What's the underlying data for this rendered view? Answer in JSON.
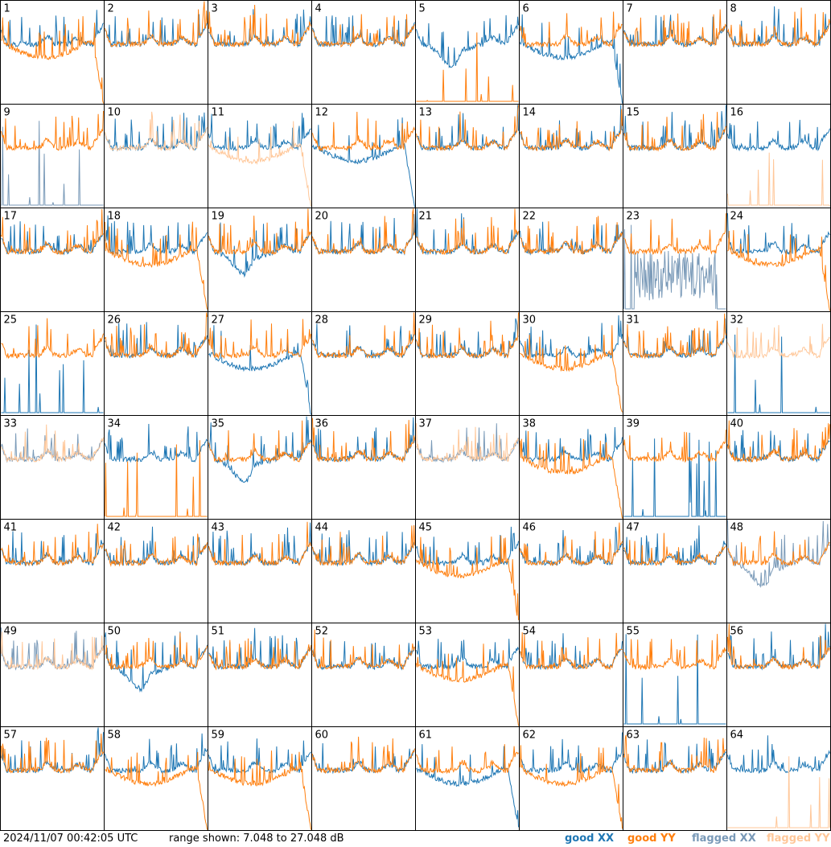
{
  "footer": {
    "timestamp": "2024/11/07 00:42:05 UTC",
    "range_text": "range shown: 7.048 to 27.048 dB"
  },
  "legend": [
    {
      "key": "good_xx",
      "label": "good XX",
      "color": "#1f77b4"
    },
    {
      "key": "good_yy",
      "label": "good YY",
      "color": "#ff7f0e"
    },
    {
      "key": "flagged_xx",
      "label": "flagged XX",
      "color": "#7a9ab8"
    },
    {
      "key": "flagged_yy",
      "label": "flagged YY",
      "color": "#ffc799"
    }
  ],
  "chart_data": {
    "type": "line",
    "layout": "8x8 small multiples",
    "ylim_db": [
      7.048,
      27.048
    ],
    "series_keys": [
      "XX",
      "YY"
    ],
    "panels": [
      {
        "id": "1",
        "xx": "good",
        "yy": "good",
        "xx_shape": "normal",
        "yy_shape": "dropoff"
      },
      {
        "id": "2",
        "xx": "good",
        "yy": "good",
        "xx_shape": "normal",
        "yy_shape": "normal"
      },
      {
        "id": "3",
        "xx": "good",
        "yy": "good",
        "xx_shape": "normal",
        "yy_shape": "normal"
      },
      {
        "id": "4",
        "xx": "good",
        "yy": "good",
        "xx_shape": "normal",
        "yy_shape": "normal"
      },
      {
        "id": "5",
        "xx": "good",
        "yy": "good",
        "xx_shape": "dip",
        "yy_shape": "low_spikes"
      },
      {
        "id": "6",
        "xx": "good",
        "yy": "good",
        "xx_shape": "dropoff",
        "yy_shape": "normal"
      },
      {
        "id": "7",
        "xx": "good",
        "yy": "good",
        "xx_shape": "normal",
        "yy_shape": "normal"
      },
      {
        "id": "8",
        "xx": "good",
        "yy": "good",
        "xx_shape": "normal",
        "yy_shape": "normal"
      },
      {
        "id": "9",
        "xx": "flagged",
        "yy": "good",
        "xx_shape": "low_spikes",
        "yy_shape": "normal"
      },
      {
        "id": "10",
        "xx": "good",
        "yy": "flagged",
        "xx_shape": "normal",
        "yy_shape": "normal"
      },
      {
        "id": "11",
        "xx": "good",
        "yy": "flagged",
        "xx_shape": "normal",
        "yy_shape": "dropoff"
      },
      {
        "id": "12",
        "xx": "good",
        "yy": "good",
        "xx_shape": "dropoff",
        "yy_shape": "normal"
      },
      {
        "id": "13",
        "xx": "good",
        "yy": "good",
        "xx_shape": "normal",
        "yy_shape": "normal"
      },
      {
        "id": "14",
        "xx": "good",
        "yy": "good",
        "xx_shape": "normal",
        "yy_shape": "normal"
      },
      {
        "id": "15",
        "xx": "good",
        "yy": "good",
        "xx_shape": "normal",
        "yy_shape": "normal"
      },
      {
        "id": "16",
        "xx": "good",
        "yy": "flagged",
        "xx_shape": "normal",
        "yy_shape": "low_spikes"
      },
      {
        "id": "17",
        "xx": "good",
        "yy": "good",
        "xx_shape": "normal",
        "yy_shape": "normal"
      },
      {
        "id": "18",
        "xx": "good",
        "yy": "good",
        "xx_shape": "normal",
        "yy_shape": "dropoff"
      },
      {
        "id": "19",
        "xx": "good",
        "yy": "good",
        "xx_shape": "dip",
        "yy_shape": "normal"
      },
      {
        "id": "20",
        "xx": "good",
        "yy": "good",
        "xx_shape": "normal",
        "yy_shape": "normal"
      },
      {
        "id": "21",
        "xx": "good",
        "yy": "good",
        "xx_shape": "normal",
        "yy_shape": "normal"
      },
      {
        "id": "22",
        "xx": "good",
        "yy": "good",
        "xx_shape": "normal",
        "yy_shape": "normal"
      },
      {
        "id": "23",
        "xx": "flagged",
        "yy": "good",
        "xx_shape": "noisy_low",
        "yy_shape": "normal"
      },
      {
        "id": "24",
        "xx": "good",
        "yy": "good",
        "xx_shape": "normal",
        "yy_shape": "dropoff"
      },
      {
        "id": "25",
        "xx": "good",
        "yy": "good",
        "xx_shape": "low_spikes",
        "yy_shape": "normal"
      },
      {
        "id": "26",
        "xx": "good",
        "yy": "good",
        "xx_shape": "normal",
        "yy_shape": "normal"
      },
      {
        "id": "27",
        "xx": "good",
        "yy": "good",
        "xx_shape": "dropoff",
        "yy_shape": "normal"
      },
      {
        "id": "28",
        "xx": "good",
        "yy": "good",
        "xx_shape": "normal",
        "yy_shape": "normal"
      },
      {
        "id": "29",
        "xx": "good",
        "yy": "good",
        "xx_shape": "normal",
        "yy_shape": "normal"
      },
      {
        "id": "30",
        "xx": "good",
        "yy": "good",
        "xx_shape": "normal",
        "yy_shape": "dropoff"
      },
      {
        "id": "31",
        "xx": "good",
        "yy": "good",
        "xx_shape": "normal",
        "yy_shape": "normal"
      },
      {
        "id": "32",
        "xx": "good",
        "yy": "flagged",
        "xx_shape": "low_spikes",
        "yy_shape": "normal"
      },
      {
        "id": "33",
        "xx": "flagged",
        "yy": "flagged",
        "xx_shape": "normal",
        "yy_shape": "normal"
      },
      {
        "id": "34",
        "xx": "good",
        "yy": "good",
        "xx_shape": "normal",
        "yy_shape": "low_spikes"
      },
      {
        "id": "35",
        "xx": "good",
        "yy": "good",
        "xx_shape": "dip",
        "yy_shape": "normal"
      },
      {
        "id": "36",
        "xx": "good",
        "yy": "good",
        "xx_shape": "normal",
        "yy_shape": "normal"
      },
      {
        "id": "37",
        "xx": "flagged",
        "yy": "flagged",
        "xx_shape": "normal",
        "yy_shape": "normal"
      },
      {
        "id": "38",
        "xx": "good",
        "yy": "good",
        "xx_shape": "normal",
        "yy_shape": "dropoff"
      },
      {
        "id": "39",
        "xx": "good",
        "yy": "good",
        "xx_shape": "low_spikes",
        "yy_shape": "normal"
      },
      {
        "id": "40",
        "xx": "good",
        "yy": "good",
        "xx_shape": "normal",
        "yy_shape": "normal"
      },
      {
        "id": "41",
        "xx": "good",
        "yy": "good",
        "xx_shape": "normal",
        "yy_shape": "normal"
      },
      {
        "id": "42",
        "xx": "good",
        "yy": "good",
        "xx_shape": "normal",
        "yy_shape": "normal"
      },
      {
        "id": "43",
        "xx": "good",
        "yy": "good",
        "xx_shape": "normal",
        "yy_shape": "normal"
      },
      {
        "id": "44",
        "xx": "good",
        "yy": "good",
        "xx_shape": "normal",
        "yy_shape": "normal"
      },
      {
        "id": "45",
        "xx": "good",
        "yy": "good",
        "xx_shape": "normal",
        "yy_shape": "dropoff"
      },
      {
        "id": "46",
        "xx": "good",
        "yy": "good",
        "xx_shape": "normal",
        "yy_shape": "normal"
      },
      {
        "id": "47",
        "xx": "good",
        "yy": "good",
        "xx_shape": "normal",
        "yy_shape": "normal"
      },
      {
        "id": "48",
        "xx": "flagged",
        "yy": "good",
        "xx_shape": "dip",
        "yy_shape": "normal"
      },
      {
        "id": "49",
        "xx": "flagged",
        "yy": "flagged",
        "xx_shape": "normal",
        "yy_shape": "normal"
      },
      {
        "id": "50",
        "xx": "good",
        "yy": "good",
        "xx_shape": "dip",
        "yy_shape": "normal"
      },
      {
        "id": "51",
        "xx": "good",
        "yy": "good",
        "xx_shape": "normal",
        "yy_shape": "normal"
      },
      {
        "id": "52",
        "xx": "good",
        "yy": "good",
        "xx_shape": "normal",
        "yy_shape": "normal"
      },
      {
        "id": "53",
        "xx": "good",
        "yy": "good",
        "xx_shape": "normal",
        "yy_shape": "dropoff"
      },
      {
        "id": "54",
        "xx": "good",
        "yy": "good",
        "xx_shape": "normal",
        "yy_shape": "normal"
      },
      {
        "id": "55",
        "xx": "good",
        "yy": "good",
        "xx_shape": "low_spikes",
        "yy_shape": "normal"
      },
      {
        "id": "56",
        "xx": "good",
        "yy": "good",
        "xx_shape": "normal",
        "yy_shape": "normal"
      },
      {
        "id": "57",
        "xx": "good",
        "yy": "good",
        "xx_shape": "normal",
        "yy_shape": "normal"
      },
      {
        "id": "58",
        "xx": "good",
        "yy": "good",
        "xx_shape": "normal",
        "yy_shape": "dropoff"
      },
      {
        "id": "59",
        "xx": "good",
        "yy": "good",
        "xx_shape": "normal",
        "yy_shape": "dropoff"
      },
      {
        "id": "60",
        "xx": "good",
        "yy": "good",
        "xx_shape": "normal",
        "yy_shape": "normal"
      },
      {
        "id": "61",
        "xx": "good",
        "yy": "good",
        "xx_shape": "dropoff",
        "yy_shape": "normal"
      },
      {
        "id": "62",
        "xx": "good",
        "yy": "good",
        "xx_shape": "normal",
        "yy_shape": "dropoff"
      },
      {
        "id": "63",
        "xx": "good",
        "yy": "good",
        "xx_shape": "normal",
        "yy_shape": "normal"
      },
      {
        "id": "64",
        "xx": "good",
        "yy": "flagged",
        "xx_shape": "normal",
        "yy_shape": "low_spikes"
      }
    ]
  }
}
